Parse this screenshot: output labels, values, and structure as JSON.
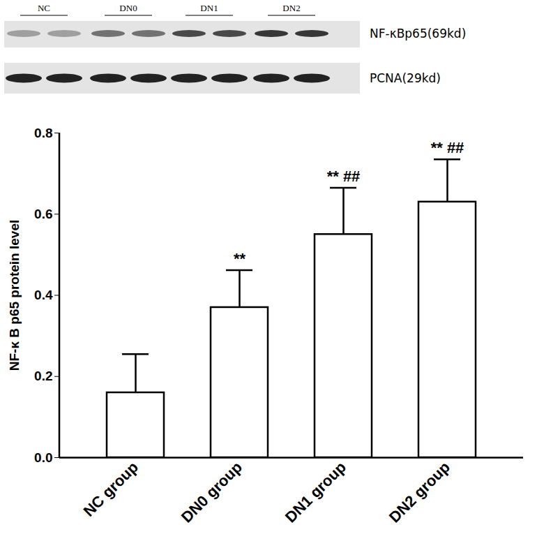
{
  "chart_data": {
    "type": "bar",
    "categories": [
      "NC group",
      "DN0 group",
      "DN1 group",
      "DN2 group"
    ],
    "values": [
      0.16,
      0.37,
      0.55,
      0.63
    ],
    "errors": [
      0.095,
      0.092,
      0.115,
      0.105
    ],
    "annotations": [
      null,
      "**",
      "** ##",
      "** ##"
    ],
    "y_label": "NF-κ B p65 protein level",
    "color": "#ffffff",
    "ylim": [
      0,
      0.8
    ],
    "yticks": [
      {
        "value": 0,
        "label": "0.0"
      },
      0.2,
      0.4,
      0.6,
      0.8
    ],
    "grid": false
  },
  "blot": {
    "lanes": [
      "NC",
      "DN0",
      "DN1",
      "DN2"
    ],
    "bands": [
      "NF-κBp65(69kd)",
      "PCNA(29kd)"
    ]
  }
}
